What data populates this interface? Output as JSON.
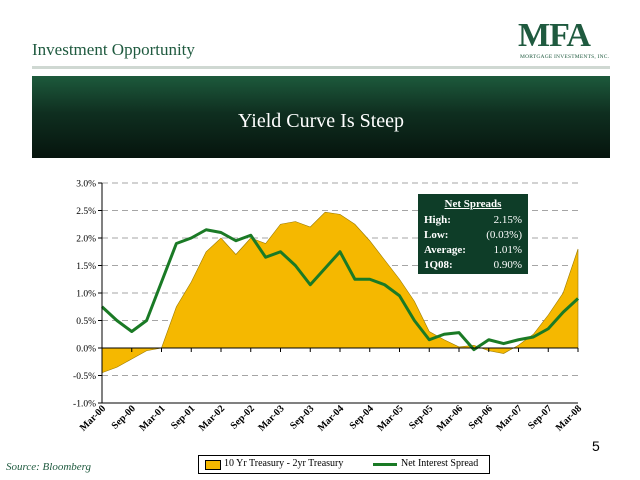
{
  "header": {
    "title": "Investment Opportunity",
    "logo_text": "MFA",
    "logo_subtext": "MORTGAGE INVESTMENTS, INC."
  },
  "banner": {
    "title": "Yield Curve Is Steep"
  },
  "net_spreads": {
    "title": "Net Spreads",
    "rows": [
      {
        "label": "High:",
        "value": "2.15%"
      },
      {
        "label": "Low:",
        "value": "(0.03%)"
      },
      {
        "label": "Average:",
        "value": "1.01%"
      },
      {
        "label": "1Q08:",
        "value": "0.90%"
      }
    ]
  },
  "source": "Source:  Bloomberg",
  "page_number": "5",
  "colors": {
    "area": "#f5b800",
    "line": "#1a7a25",
    "banner": "#0f2f20",
    "brand": "#1f5a3f"
  },
  "chart_data": {
    "type": "area",
    "categories": [
      "Mar-00",
      "Sep-00",
      "Mar-01",
      "Sep-01",
      "Mar-02",
      "Sep-02",
      "Mar-03",
      "Sep-03",
      "Mar-04",
      "Sep-04",
      "Mar-05",
      "Sep-05",
      "Mar-06",
      "Sep-06",
      "Mar-07",
      "Sep-07",
      "Mar-08"
    ],
    "ylim": [
      -1.0,
      3.0
    ],
    "yticks": [
      "3.0%",
      "2.5%",
      "2.0%",
      "1.5%",
      "1.0%",
      "0.5%",
      "0.0%",
      "-0.5%",
      "-1.0%"
    ],
    "grid": true,
    "legend_position": "bottom",
    "series": [
      {
        "name": "10 Yr Treasury - 2yr Treasury",
        "kind": "area",
        "x": [
          0,
          0.5,
          1,
          1.5,
          2,
          2.5,
          3,
          3.5,
          4,
          4.5,
          5,
          5.5,
          6,
          6.5,
          7,
          7.5,
          8,
          8.5,
          9,
          9.5,
          10,
          10.5,
          11,
          11.5,
          12,
          12.5,
          13,
          13.5,
          14,
          14.5,
          15,
          15.5,
          16
        ],
        "values": [
          -0.45,
          -0.35,
          -0.2,
          -0.05,
          0.0,
          0.75,
          1.2,
          1.75,
          2.0,
          1.7,
          2.0,
          1.9,
          2.25,
          2.3,
          2.2,
          2.47,
          2.43,
          2.25,
          1.95,
          1.6,
          1.25,
          0.85,
          0.3,
          0.15,
          0.02,
          0.05,
          -0.05,
          -0.1,
          0.05,
          0.25,
          0.6,
          1.0,
          1.8
        ]
      },
      {
        "name": "Net Interest Spread",
        "kind": "line",
        "x": [
          0,
          0.5,
          1,
          1.5,
          2,
          2.5,
          3,
          3.5,
          4,
          4.5,
          5,
          5.5,
          6,
          6.5,
          7,
          7.5,
          8,
          8.5,
          9,
          9.5,
          10,
          10.5,
          11,
          11.5,
          12,
          12.5,
          13,
          13.5,
          14,
          14.5,
          15,
          15.5,
          16
        ],
        "values": [
          0.75,
          0.5,
          0.3,
          0.5,
          1.2,
          1.9,
          2.0,
          2.15,
          2.1,
          1.95,
          2.05,
          1.65,
          1.75,
          1.5,
          1.15,
          1.45,
          1.75,
          1.25,
          1.25,
          1.15,
          0.95,
          0.5,
          0.15,
          0.25,
          0.28,
          -0.03,
          0.15,
          0.08,
          0.15,
          0.2,
          0.35,
          0.65,
          0.9
        ]
      }
    ]
  }
}
